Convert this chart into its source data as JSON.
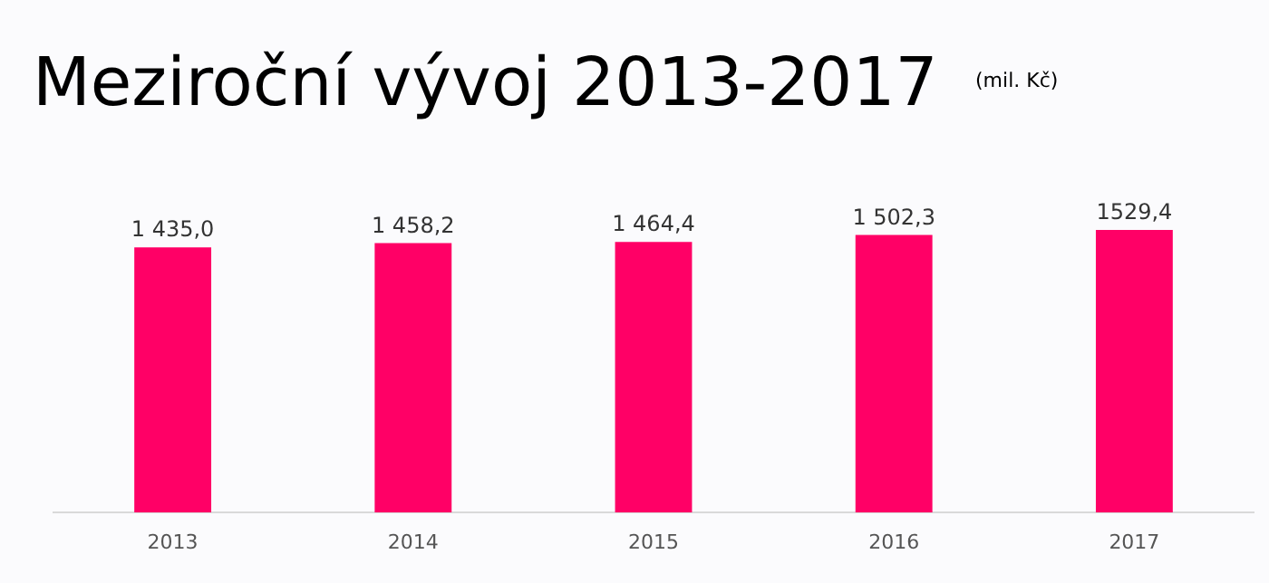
{
  "chart_data": {
    "type": "bar",
    "title": "Meziroční vývoj 2013-2017",
    "subtitle": "(mil. Kč)",
    "categories": [
      "2013",
      "2014",
      "2015",
      "2016",
      "2017"
    ],
    "values": [
      1435.0,
      1458.2,
      1464.4,
      1502.3,
      1529.4
    ],
    "value_labels": [
      "1 435,0",
      "1 458,2",
      "1 464,4",
      "1 502,3",
      "1529,4"
    ],
    "color": "#ff0066",
    "grid": false
  }
}
